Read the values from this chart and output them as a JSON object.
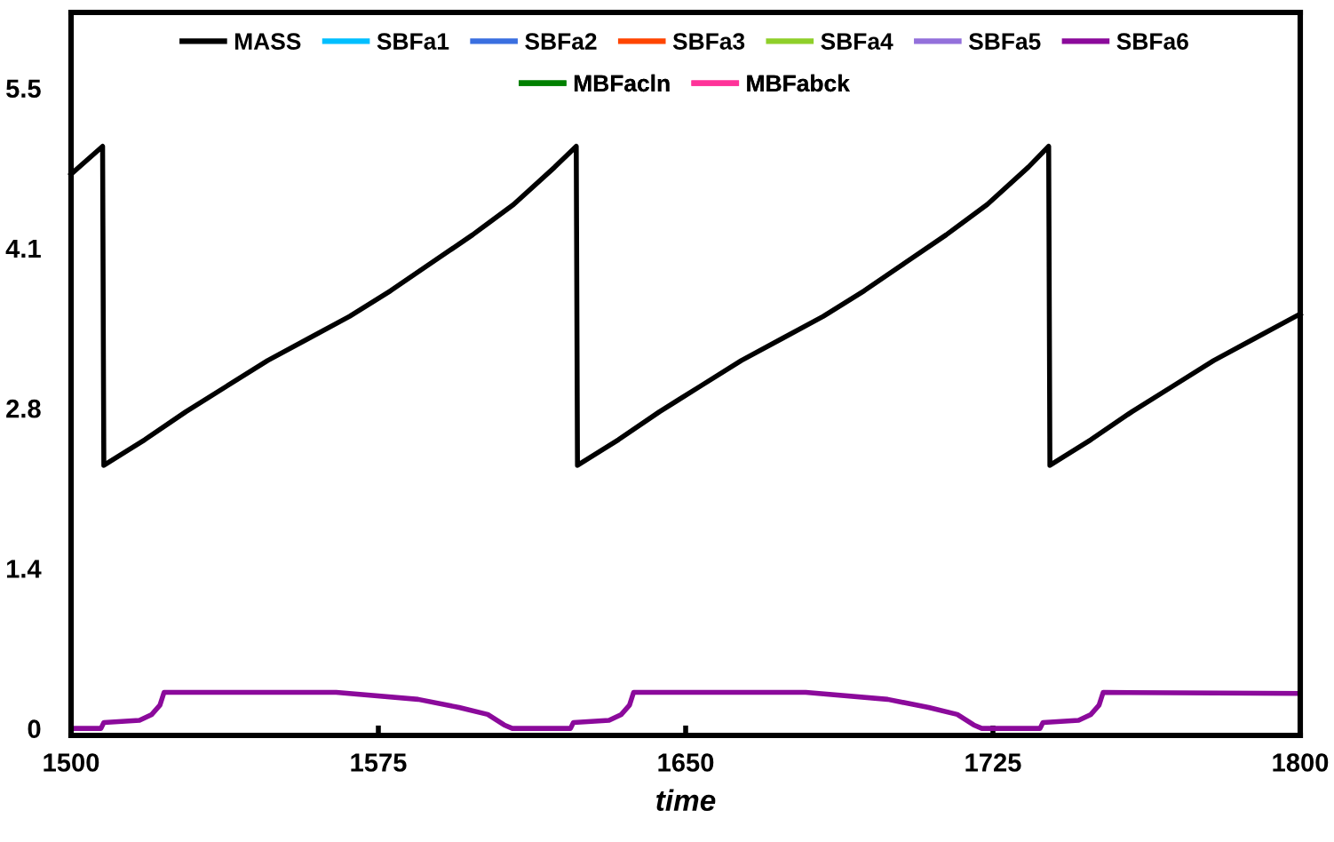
{
  "chart_data": {
    "type": "line",
    "xlabel": "time",
    "xlim": [
      1500,
      1800
    ],
    "xticks": [
      1500,
      1575,
      1650,
      1725,
      1800
    ],
    "ylim": [
      -0.06,
      6.15
    ],
    "yticks": [
      0,
      {
        "value": 1.375,
        "label": "1.4"
      },
      {
        "value": 2.75,
        "label": "2.8"
      },
      {
        "value": 4.125,
        "label": "4.1"
      },
      5.5
    ],
    "grid": false,
    "legend": "top",
    "marker": "none",
    "line_style": "solid",
    "series": [
      {
        "name": "MASS",
        "color": "#000000",
        "x": [
          1500,
          1507.7,
          1508,
          1518,
          1528,
          1538,
          1548,
          1558,
          1568,
          1578,
          1588,
          1598,
          1608,
          1618,
          1623.3,
          1623.6,
          1633.6,
          1643.6,
          1653.6,
          1663.6,
          1673.6,
          1683.6,
          1693.6,
          1703.6,
          1713.6,
          1723.6,
          1733.6,
          1738.6,
          1738.9,
          1748.9,
          1758.9,
          1768.9,
          1778.9,
          1788.9,
          1798.9,
          1800
        ],
        "values": [
          4.76,
          5.0,
          2.26,
          2.48,
          2.72,
          2.94,
          3.16,
          3.35,
          3.54,
          3.76,
          4.0,
          4.24,
          4.5,
          4.82,
          5.0,
          2.26,
          2.48,
          2.72,
          2.94,
          3.16,
          3.35,
          3.54,
          3.76,
          4.0,
          4.24,
          4.5,
          4.82,
          5.0,
          2.26,
          2.48,
          2.72,
          2.94,
          3.16,
          3.35,
          3.54,
          3.56
        ]
      },
      {
        "name": "SBFa1",
        "color": "#00bfff"
      },
      {
        "name": "SBFa2",
        "color": "#3a6fe0"
      },
      {
        "name": "SBFa3",
        "color": "#ff4500"
      },
      {
        "name": "SBFa4",
        "color": "#8fcf2a"
      },
      {
        "name": "SBFa5",
        "color": "#9370db"
      },
      {
        "name": "SBFa6",
        "color": "#8b0a9b",
        "x": [
          1500,
          1507.3,
          1508,
          1516.7,
          1519.7,
          1521.7,
          1522.7,
          1564.7,
          1584.7,
          1594.7,
          1601.7,
          1605.7,
          1607.7,
          1621.9,
          1622.6,
          1631.3,
          1634.3,
          1636.3,
          1637.3,
          1679.3,
          1699.3,
          1709.3,
          1716.3,
          1720.3,
          1722.3,
          1736.5,
          1737.2,
          1745.9,
          1748.9,
          1750.9,
          1751.9,
          1800
        ],
        "values": [
          0,
          0,
          0.05,
          0.07,
          0.12,
          0.2,
          0.31,
          0.31,
          0.25,
          0.18,
          0.12,
          0.03,
          0,
          0,
          0.05,
          0.07,
          0.12,
          0.2,
          0.31,
          0.31,
          0.25,
          0.18,
          0.12,
          0.03,
          0,
          0,
          0.05,
          0.07,
          0.12,
          0.2,
          0.31,
          0.3
        ]
      },
      {
        "name": "MBFacln",
        "color": "#008000"
      },
      {
        "name": "MBFabck",
        "color": "#ff3399"
      }
    ]
  }
}
